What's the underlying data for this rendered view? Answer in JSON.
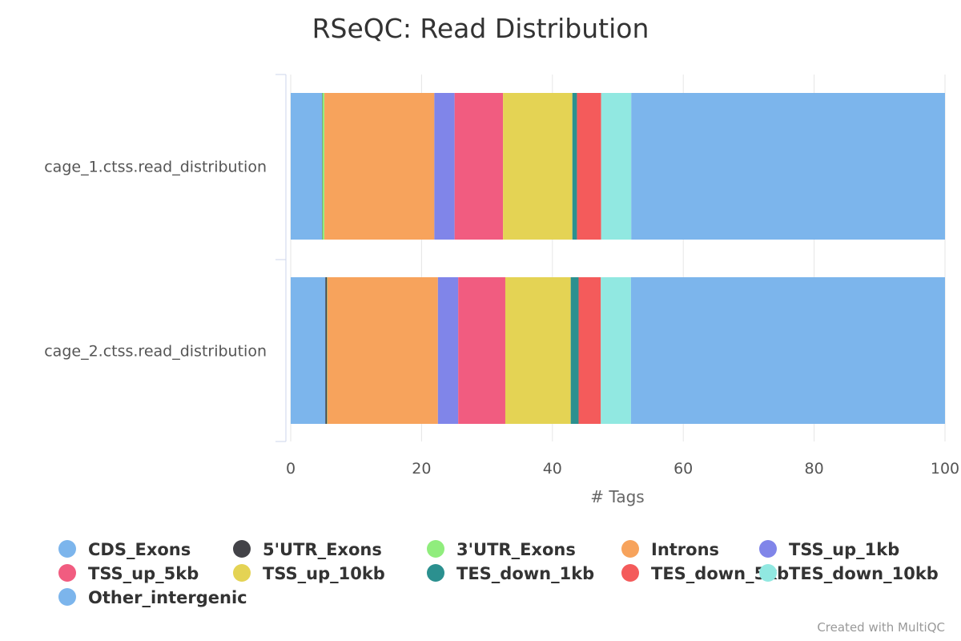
{
  "chart_data": {
    "type": "bar",
    "orientation": "horizontal",
    "stacked": true,
    "title": "RSeQC: Read Distribution",
    "xlabel": "# Tags",
    "ylabel": "",
    "xlim": [
      0,
      100
    ],
    "xticks": [
      "0",
      "20",
      "40",
      "60",
      "80",
      "100"
    ],
    "grid": true,
    "legend_position": "bottom",
    "categories": [
      "cage_1.ctss.read_distribution",
      "cage_2.ctss.read_distribution"
    ],
    "series": [
      {
        "name": "CDS_Exons",
        "color": "#7cb5ec",
        "values": [
          4.8,
          5.3
        ]
      },
      {
        "name": "5'UTR_Exons",
        "color": "#434348",
        "values": [
          0.05,
          0.25
        ]
      },
      {
        "name": "3'UTR_Exons",
        "color": "#90ed7d",
        "values": [
          0.3,
          0.05
        ]
      },
      {
        "name": "Introns",
        "color": "#f7a35c",
        "values": [
          16.8,
          16.9
        ]
      },
      {
        "name": "TSS_up_1kb",
        "color": "#8085e9",
        "values": [
          3.1,
          3.1
        ]
      },
      {
        "name": "TSS_up_5kb",
        "color": "#f15c80",
        "values": [
          7.4,
          7.2
        ]
      },
      {
        "name": "TSS_up_10kb",
        "color": "#e4d354",
        "values": [
          10.6,
          10.0
        ]
      },
      {
        "name": "TES_down_1kb",
        "color": "#2b908f",
        "values": [
          0.7,
          1.2
        ]
      },
      {
        "name": "TES_down_5kb",
        "color": "#f45b5b",
        "values": [
          3.7,
          3.4
        ]
      },
      {
        "name": "TES_down_10kb",
        "color": "#91e8e1",
        "values": [
          4.6,
          4.6
        ]
      },
      {
        "name": "Other_intergenic",
        "color": "#7cb5ec",
        "values": [
          47.95,
          48.0
        ]
      }
    ]
  },
  "footer": {
    "credit": "Created with MultiQC"
  }
}
